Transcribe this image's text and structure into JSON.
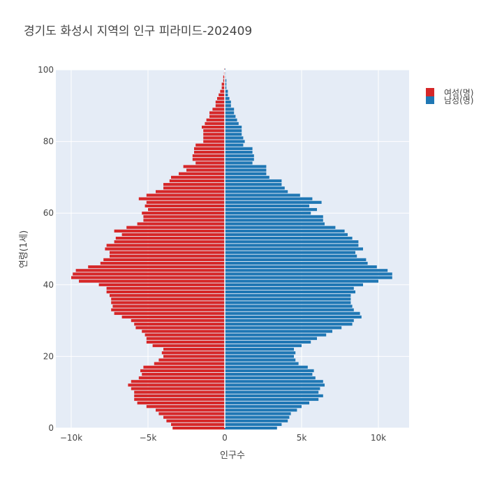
{
  "chart_data": {
    "type": "bar",
    "orientation": "horizontal",
    "title": "경기도 화성시 지역의 인구 피라미드-202409",
    "xlabel": "인구수",
    "ylabel": "연령(1세)",
    "xlim": [
      -11000,
      12000
    ],
    "ylim": [
      0,
      100
    ],
    "x_tick_values": [
      -10000,
      -5000,
      0,
      5000,
      10000
    ],
    "x_tick_labels": [
      "−10k",
      "−5k",
      "0",
      "5k",
      "10k"
    ],
    "y_tick_values": [
      0,
      20,
      40,
      60,
      80,
      100
    ],
    "y_tick_labels": [
      "0",
      "20",
      "40",
      "60",
      "80",
      "100"
    ],
    "legend_position": "top-right",
    "grid": true,
    "ages": [
      0,
      1,
      2,
      3,
      4,
      5,
      6,
      7,
      8,
      9,
      10,
      11,
      12,
      13,
      14,
      15,
      16,
      17,
      18,
      19,
      20,
      21,
      22,
      23,
      24,
      25,
      26,
      27,
      28,
      29,
      30,
      31,
      32,
      33,
      34,
      35,
      36,
      37,
      38,
      39,
      40,
      41,
      42,
      43,
      44,
      45,
      46,
      47,
      48,
      49,
      50,
      51,
      52,
      53,
      54,
      55,
      56,
      57,
      58,
      59,
      60,
      61,
      62,
      63,
      64,
      65,
      66,
      67,
      68,
      69,
      70,
      71,
      72,
      73,
      74,
      75,
      76,
      77,
      78,
      79,
      80,
      81,
      82,
      83,
      84,
      85,
      86,
      87,
      88,
      89,
      90,
      91,
      92,
      93,
      94,
      95,
      96,
      97,
      98,
      99,
      100
    ],
    "series": [
      {
        "name": "남성(명)",
        "color": "#1f77b4",
        "values": [
          3400,
          3700,
          4100,
          4200,
          4300,
          4700,
          5000,
          5500,
          6100,
          6400,
          6100,
          6200,
          6500,
          6400,
          5900,
          5700,
          5800,
          5400,
          4800,
          4600,
          4500,
          4600,
          4500,
          5000,
          5600,
          6000,
          6600,
          7000,
          7600,
          8300,
          8400,
          8900,
          8800,
          8400,
          8300,
          8200,
          8200,
          8200,
          8500,
          8400,
          9000,
          10000,
          10900,
          10900,
          10600,
          9900,
          9300,
          9200,
          8600,
          8500,
          9000,
          8700,
          8700,
          8300,
          8000,
          7800,
          7200,
          6500,
          6400,
          6400,
          5600,
          6000,
          5500,
          6300,
          5700,
          4900,
          4100,
          3900,
          3700,
          3700,
          2900,
          2700,
          2700,
          2700,
          1800,
          1900,
          1900,
          1800,
          1800,
          1200,
          1300,
          1200,
          1100,
          1100,
          1100,
          900,
          800,
          700,
          600,
          600,
          400,
          400,
          300,
          200,
          200,
          100,
          100,
          100,
          50,
          50,
          20
        ]
      },
      {
        "name": "여성(명)",
        "color": "#d62728",
        "values": [
          3400,
          3500,
          3800,
          4000,
          4300,
          4500,
          5100,
          5700,
          5900,
          5900,
          5900,
          6100,
          6300,
          6100,
          5600,
          5400,
          5500,
          5300,
          4600,
          4300,
          4000,
          4100,
          4000,
          4700,
          5100,
          5100,
          5200,
          5400,
          5800,
          5900,
          6100,
          6700,
          7200,
          7400,
          7300,
          7400,
          7400,
          7500,
          7700,
          7700,
          8200,
          9500,
          10000,
          9900,
          9700,
          8900,
          8100,
          7900,
          7500,
          7500,
          7800,
          7700,
          7200,
          7100,
          6700,
          7200,
          6400,
          5700,
          5300,
          5300,
          5400,
          5000,
          5200,
          5100,
          5600,
          5100,
          4500,
          4000,
          4000,
          3600,
          3500,
          3000,
          2500,
          2700,
          1900,
          2100,
          2100,
          2000,
          2000,
          1900,
          1400,
          1400,
          1400,
          1400,
          1500,
          1300,
          1200,
          1000,
          1000,
          800,
          600,
          600,
          500,
          400,
          300,
          200,
          200,
          100,
          100,
          50,
          20
        ]
      }
    ]
  }
}
